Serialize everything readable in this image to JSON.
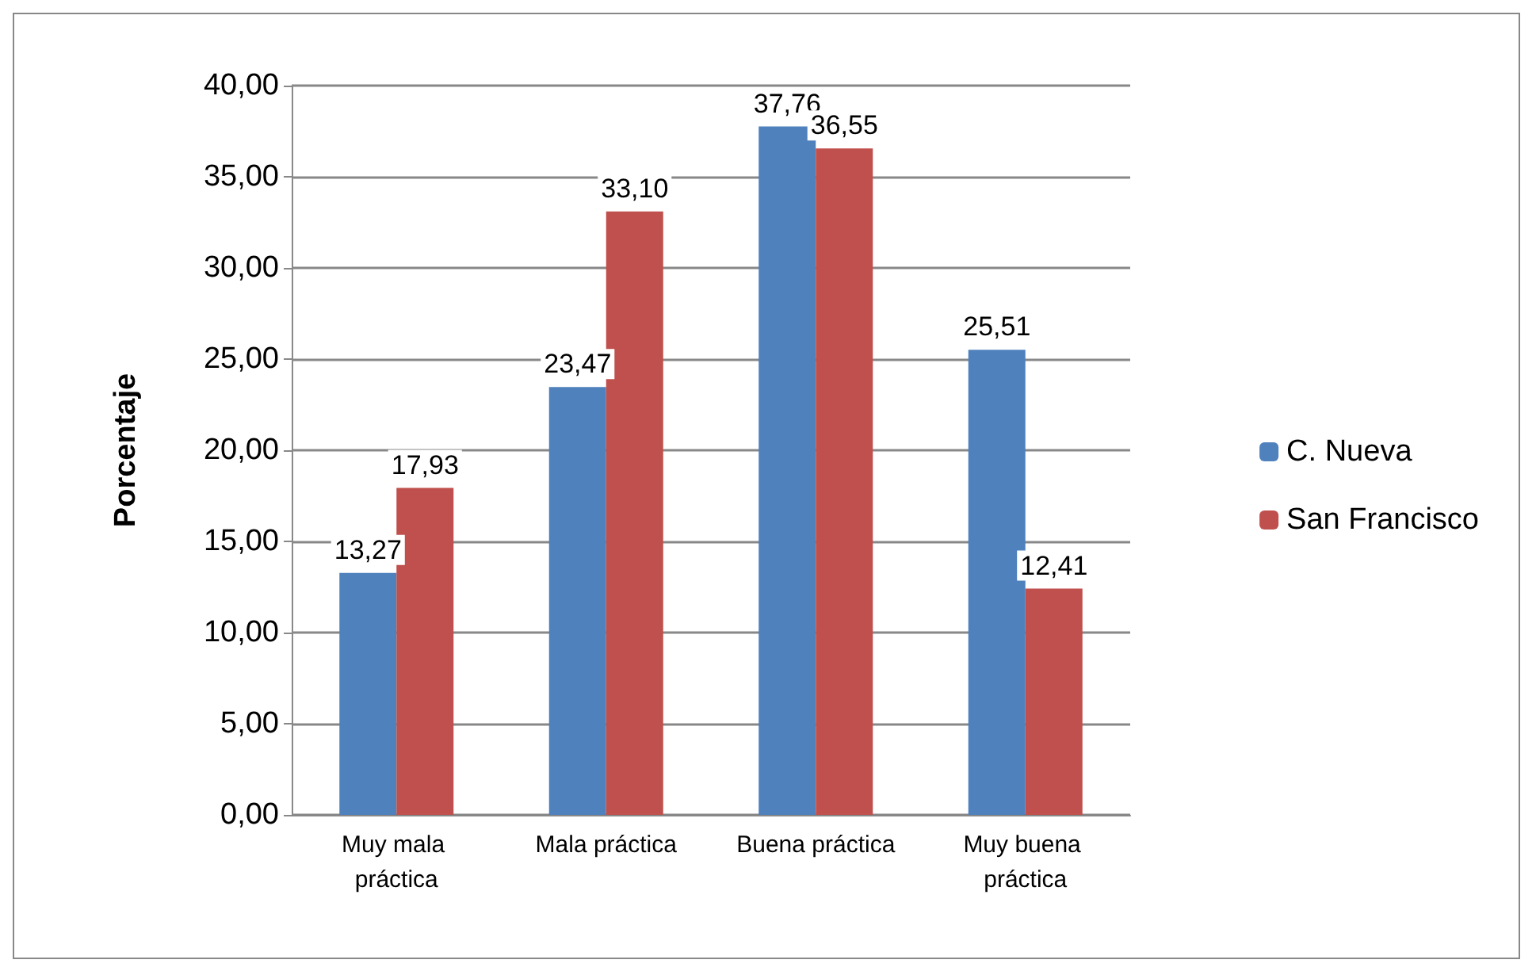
{
  "chart_data": {
    "type": "bar",
    "ylabel": "Porcentaje",
    "categories": [
      "Muy mala práctica",
      "Mala práctica",
      "Buena práctica",
      "Muy buena práctica"
    ],
    "series": [
      {
        "name": "C. Nueva",
        "color": "#4f81bd",
        "values": [
          13.27,
          23.47,
          37.76,
          25.51
        ],
        "value_labels": [
          "13,27",
          "23,47",
          "37,76",
          "25,51"
        ]
      },
      {
        "name": "San Francisco",
        "color": "#c0504d",
        "values": [
          17.93,
          33.1,
          36.55,
          12.41
        ],
        "value_labels": [
          "17,93",
          "33,10",
          "36,55",
          "12,41"
        ]
      }
    ],
    "ylim": [
      0,
      40
    ],
    "yticks": [
      {
        "value": 0,
        "label": "0,00"
      },
      {
        "value": 5,
        "label": "5,00"
      },
      {
        "value": 10,
        "label": "10,00"
      },
      {
        "value": 15,
        "label": "15,00"
      },
      {
        "value": 20,
        "label": "20,00"
      },
      {
        "value": 25,
        "label": "25,00"
      },
      {
        "value": 30,
        "label": "30,00"
      },
      {
        "value": 35,
        "label": "35,00"
      },
      {
        "value": 40,
        "label": "40,00"
      }
    ],
    "grid": "y",
    "legend": "right"
  }
}
